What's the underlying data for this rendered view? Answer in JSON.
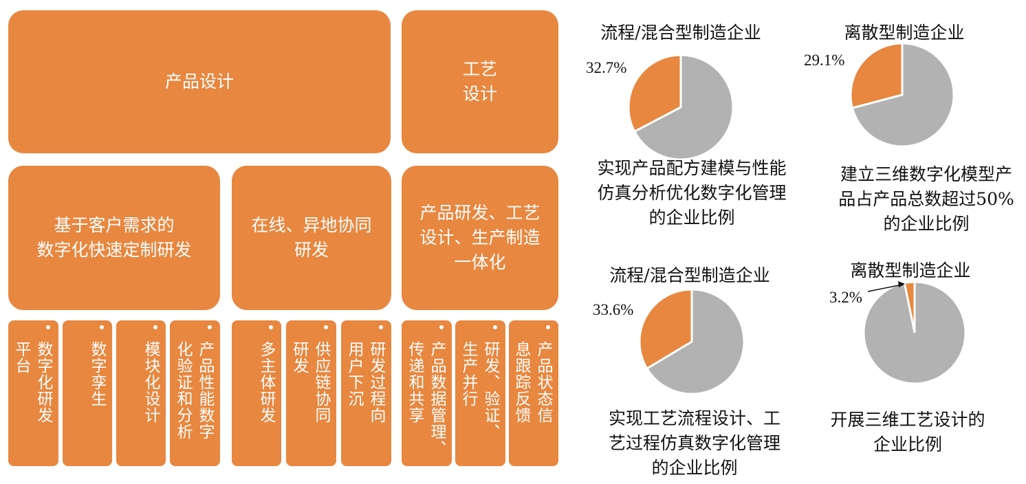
{
  "colors": {
    "orange": "#e8873f",
    "gray": "#b2b2b2"
  },
  "top": {
    "product_design": "产品设计",
    "process_design": "工艺\n设计"
  },
  "middle": {
    "custom_rd": "基于客户需求的\n数字化快速定制研发",
    "online_rd": "在线、异地协同\n研发",
    "integration": "产品研发、工艺\n设计、生产制造\n一体化"
  },
  "bottom": [
    "数字化研发\n平台",
    "数字孪生",
    "模块化设计",
    "产品性能数字\n化验证和分析",
    "多主体研发",
    "供应链协同\n研发",
    "研发过程向\n用户下沉",
    "产品数据管理、\n传递和共享",
    "研发、验证、\n生产并行",
    "产品状态信\n息跟踪反馈"
  ],
  "chart_data": [
    {
      "type": "pie",
      "title": "流程/混合型制造企业",
      "values": [
        32.7,
        67.3
      ],
      "label": "32.7%",
      "caption": "实现产品配方建模与性能\n仿真分析优化数字化管理\n的企业比例"
    },
    {
      "type": "pie",
      "title": "离散型制造企业",
      "values": [
        29.1,
        70.9
      ],
      "label": "29.1%",
      "caption": "建立三维数字化模型产\n品占产品总数超过50%\n的企业比例"
    },
    {
      "type": "pie",
      "title": "流程/混合型制造企业",
      "values": [
        33.6,
        66.4
      ],
      "label": "33.6%",
      "caption": "实现工艺流程设计、工\n艺过程仿真数字化管理\n的企业比例"
    },
    {
      "type": "pie",
      "title": "离散型制造企业",
      "values": [
        3.2,
        96.8
      ],
      "label": "3.2%",
      "caption": "开展三维工艺设计的\n企业比例"
    }
  ]
}
